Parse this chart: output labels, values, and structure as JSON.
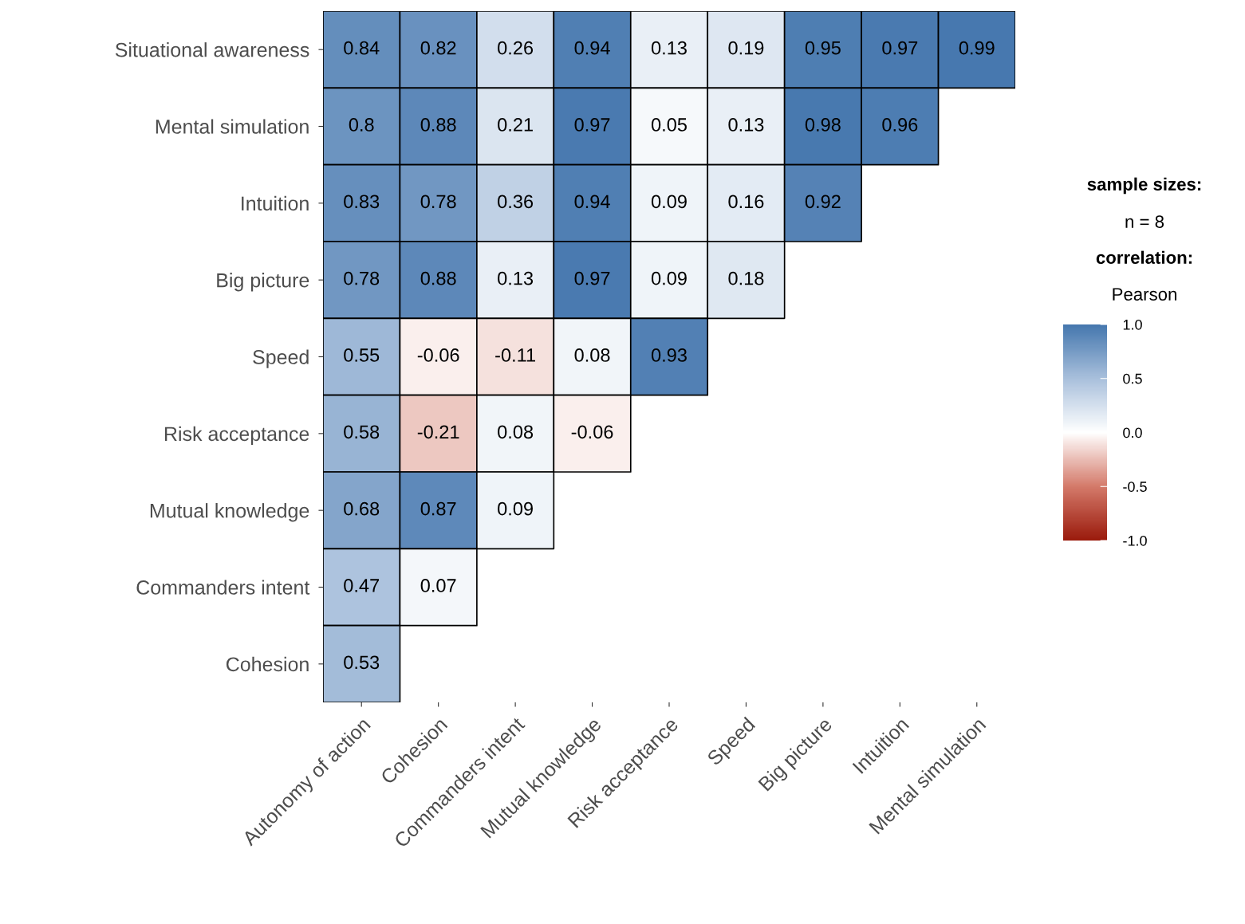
{
  "chart_data": {
    "type": "heatmap",
    "categories": [
      "Autonomy of action",
      "Cohesion",
      "Commanders intent",
      "Mutual knowledge",
      "Risk acceptance",
      "Speed",
      "Big picture",
      "Intuition",
      "Mental simulation"
    ],
    "y_categories": [
      "Situational awareness",
      "Mental simulation",
      "Intuition",
      "Big picture",
      "Speed",
      "Risk acceptance",
      "Mutual knowledge",
      "Commanders intent",
      "Cohesion"
    ],
    "cells": [
      [
        0.84,
        0.82,
        0.26,
        0.94,
        0.13,
        0.19,
        0.95,
        0.97,
        0.99
      ],
      [
        0.8,
        0.88,
        0.21,
        0.97,
        0.05,
        0.13,
        0.98,
        0.96,
        null
      ],
      [
        0.83,
        0.78,
        0.36,
        0.94,
        0.09,
        0.16,
        0.92,
        null,
        null
      ],
      [
        0.78,
        0.88,
        0.13,
        0.97,
        0.09,
        0.18,
        null,
        null,
        null
      ],
      [
        0.55,
        -0.06,
        -0.11,
        0.08,
        0.93,
        null,
        null,
        null,
        null
      ],
      [
        0.58,
        -0.21,
        0.08,
        -0.06,
        null,
        null,
        null,
        null,
        null
      ],
      [
        0.68,
        0.87,
        0.09,
        null,
        null,
        null,
        null,
        null,
        null
      ],
      [
        0.47,
        0.07,
        null,
        null,
        null,
        null,
        null,
        null,
        null
      ],
      [
        0.53,
        null,
        null,
        null,
        null,
        null,
        null,
        null,
        null
      ]
    ],
    "clim": [
      -1.0,
      1.0
    ],
    "cticks": [
      {
        "value": 1.0,
        "label": "1.0"
      },
      {
        "value": 0.5,
        "label": "0.5"
      },
      {
        "value": 0.0,
        "label": "0.0"
      },
      {
        "value": -0.5,
        "label": "-0.5"
      },
      {
        "value": -1.0,
        "label": "-1.0"
      }
    ],
    "data_labels": true,
    "annotations": [
      "sample sizes:",
      "n = 8",
      "correlation:",
      "Pearson"
    ]
  }
}
